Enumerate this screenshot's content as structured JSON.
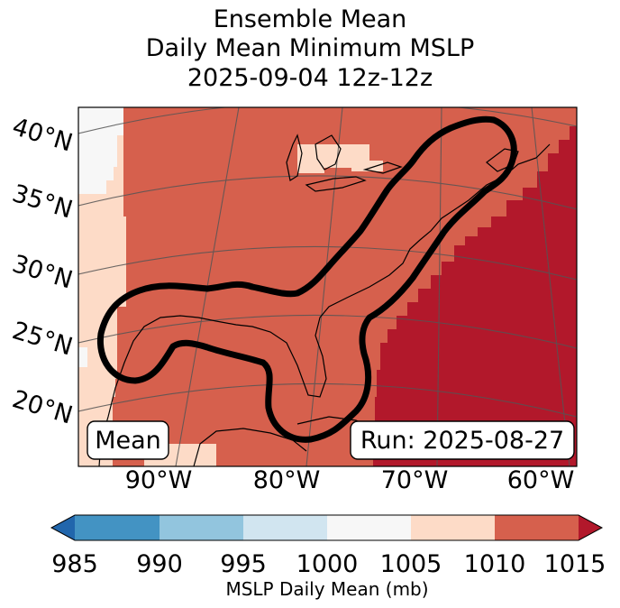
{
  "title": {
    "line1": "Ensemble Mean",
    "line2": "Daily Mean Minimum MSLP",
    "line3": "2025-09-04 12z-12z"
  },
  "map": {
    "lat_labels": [
      "40°N",
      "35°N",
      "30°N",
      "25°N",
      "20°N"
    ],
    "lon_labels": [
      "90°W",
      "80°W",
      "70°W",
      "60°W"
    ],
    "stat_badge": "Mean",
    "run_badge": "Run: 2025-08-27"
  },
  "colorbar": {
    "label": "MSLP Daily Mean (mb)",
    "ticks": [
      "985",
      "990",
      "995",
      "1000",
      "1005",
      "1010",
      "1015"
    ],
    "colors": [
      "#2166ac",
      "#4393c3",
      "#92c5de",
      "#d1e5f0",
      "#f7f7f7",
      "#fddbc7",
      "#d6604d",
      "#b2182b"
    ]
  }
}
